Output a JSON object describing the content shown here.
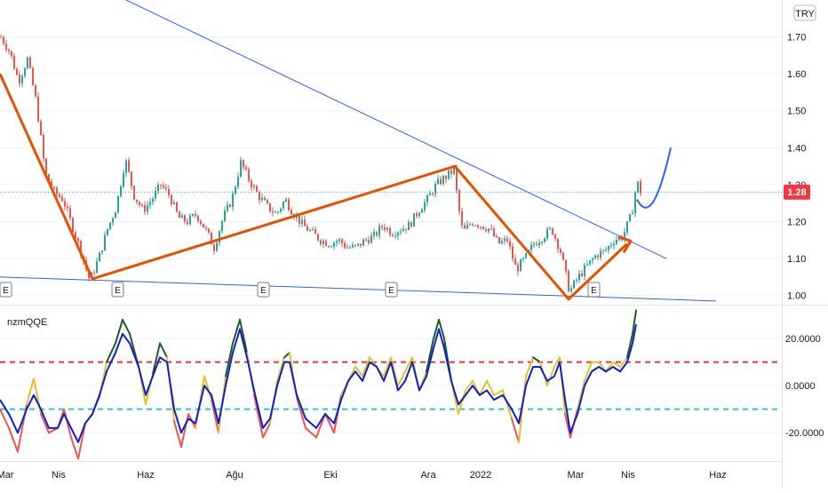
{
  "currency": "TRY",
  "indicator_name": "nzmQQE",
  "last_price_label": "1.28",
  "colors": {
    "up": "#26a69a",
    "down": "#ef5350",
    "trendline_blue": "#2962ff",
    "zigzag": "#e65100",
    "price_badge": "#f23645",
    "qqe_fast_up": "#1b5e20",
    "qqe_fast_mid": "#e6c02a",
    "qqe_fast_down": "#ef5350",
    "qqe_slow": "#0d1fcf",
    "upper_threshold": "#e53935",
    "lower_threshold": "#26c6da"
  },
  "earnings_marker_label": "E",
  "chart_data": [
    {
      "type": "line",
      "subtype": "candlestick",
      "price_ticks": [
        "1.70",
        "1.60",
        "1.50",
        "1.40",
        "1.30",
        "1.20",
        "1.10",
        "1.00"
      ],
      "ylim": [
        0.975,
        1.8
      ],
      "x_labels": [
        "Mar",
        "Nis",
        "Haz",
        "Ağu",
        "Eki",
        "Ara",
        "2022",
        "Mar",
        "Nis",
        "Haz"
      ],
      "last_price": 1.28,
      "close_path": [
        [
          0,
          1.7
        ],
        [
          10,
          1.66
        ],
        [
          20,
          1.58
        ],
        [
          30,
          1.64
        ],
        [
          40,
          1.52
        ],
        [
          50,
          1.33
        ],
        [
          60,
          1.28
        ],
        [
          70,
          1.26
        ],
        [
          80,
          1.19
        ],
        [
          90,
          1.12
        ],
        [
          100,
          1.04
        ],
        [
          110,
          1.1
        ],
        [
          120,
          1.18
        ],
        [
          130,
          1.24
        ],
        [
          140,
          1.37
        ],
        [
          150,
          1.27
        ],
        [
          160,
          1.23
        ],
        [
          170,
          1.26
        ],
        [
          180,
          1.3
        ],
        [
          190,
          1.27
        ],
        [
          200,
          1.21
        ],
        [
          210,
          1.2
        ],
        [
          220,
          1.22
        ],
        [
          230,
          1.18
        ],
        [
          240,
          1.13
        ],
        [
          250,
          1.21
        ],
        [
          260,
          1.26
        ],
        [
          270,
          1.36
        ],
        [
          280,
          1.31
        ],
        [
          290,
          1.27
        ],
        [
          300,
          1.24
        ],
        [
          310,
          1.22
        ],
        [
          320,
          1.26
        ],
        [
          330,
          1.22
        ],
        [
          340,
          1.19
        ],
        [
          350,
          1.17
        ],
        [
          360,
          1.15
        ],
        [
          370,
          1.14
        ],
        [
          380,
          1.15
        ],
        [
          390,
          1.13
        ],
        [
          400,
          1.13
        ],
        [
          410,
          1.15
        ],
        [
          420,
          1.16
        ],
        [
          430,
          1.19
        ],
        [
          440,
          1.17
        ],
        [
          450,
          1.18
        ],
        [
          460,
          1.19
        ],
        [
          470,
          1.23
        ],
        [
          480,
          1.26
        ],
        [
          490,
          1.3
        ],
        [
          500,
          1.32
        ],
        [
          510,
          1.34
        ],
        [
          515,
          1.24
        ],
        [
          520,
          1.17
        ],
        [
          530,
          1.2
        ],
        [
          540,
          1.19
        ],
        [
          550,
          1.18
        ],
        [
          560,
          1.14
        ],
        [
          570,
          1.15
        ],
        [
          580,
          1.07
        ],
        [
          590,
          1.1
        ],
        [
          600,
          1.14
        ],
        [
          610,
          1.16
        ],
        [
          620,
          1.18
        ],
        [
          630,
          1.12
        ],
        [
          640,
          1.01
        ],
        [
          650,
          1.05
        ],
        [
          660,
          1.08
        ],
        [
          670,
          1.11
        ],
        [
          680,
          1.12
        ],
        [
          690,
          1.15
        ],
        [
          700,
          1.16
        ],
        [
          710,
          1.22
        ],
        [
          716,
          1.31
        ],
        [
          720,
          1.28
        ]
      ],
      "drawings": {
        "upper_trendline": [
          [
            55,
            1.9
          ],
          [
            750,
            1.1
          ]
        ],
        "lower_trendline": [
          [
            0,
            1.05
          ],
          [
            806,
            0.985
          ]
        ],
        "zigzag": [
          [
            0,
            1.6
          ],
          [
            104,
            1.045
          ],
          [
            512,
            1.35
          ],
          [
            640,
            0.99
          ],
          [
            706,
            1.14
          ]
        ],
        "projection_curve": [
          [
            717,
            1.26
          ],
          [
            728,
            1.21
          ],
          [
            740,
            1.24
          ],
          [
            755,
            1.4
          ]
        ]
      }
    },
    {
      "type": "line",
      "title": "nzmQQE",
      "y_ticks": [
        "20.0000",
        "0.0000",
        "-20.0000"
      ],
      "ylim": [
        -32,
        34
      ],
      "thresholds": [
        10,
        -10
      ],
      "fast_line": [
        [
          0,
          -10
        ],
        [
          10,
          -18
        ],
        [
          20,
          -28
        ],
        [
          30,
          -8
        ],
        [
          38,
          3
        ],
        [
          46,
          -12
        ],
        [
          55,
          -20
        ],
        [
          65,
          -18
        ],
        [
          72,
          -10
        ],
        [
          80,
          -22
        ],
        [
          88,
          -31
        ],
        [
          96,
          -16
        ],
        [
          104,
          -12
        ],
        [
          112,
          -5
        ],
        [
          120,
          10
        ],
        [
          130,
          18
        ],
        [
          138,
          28
        ],
        [
          146,
          22
        ],
        [
          156,
          8
        ],
        [
          164,
          -8
        ],
        [
          172,
          5
        ],
        [
          180,
          18
        ],
        [
          188,
          12
        ],
        [
          196,
          -15
        ],
        [
          204,
          -26
        ],
        [
          212,
          -12
        ],
        [
          220,
          -18
        ],
        [
          230,
          4
        ],
        [
          238,
          -6
        ],
        [
          246,
          -20
        ],
        [
          254,
          4
        ],
        [
          262,
          18
        ],
        [
          270,
          28
        ],
        [
          278,
          14
        ],
        [
          286,
          -4
        ],
        [
          296,
          -22
        ],
        [
          304,
          -16
        ],
        [
          312,
          2
        ],
        [
          320,
          12
        ],
        [
          326,
          14
        ],
        [
          334,
          -5
        ],
        [
          344,
          -18
        ],
        [
          356,
          -22
        ],
        [
          366,
          -12
        ],
        [
          376,
          -20
        ],
        [
          384,
          -4
        ],
        [
          392,
          2
        ],
        [
          400,
          8
        ],
        [
          408,
          4
        ],
        [
          416,
          12
        ],
        [
          424,
          8
        ],
        [
          432,
          4
        ],
        [
          440,
          12
        ],
        [
          448,
          0
        ],
        [
          456,
          6
        ],
        [
          464,
          12
        ],
        [
          472,
          -2
        ],
        [
          480,
          6
        ],
        [
          488,
          20
        ],
        [
          494,
          28
        ],
        [
          500,
          20
        ],
        [
          508,
          2
        ],
        [
          516,
          -12
        ],
        [
          524,
          -2
        ],
        [
          532,
          2
        ],
        [
          540,
          -4
        ],
        [
          548,
          2
        ],
        [
          556,
          -4
        ],
        [
          566,
          -2
        ],
        [
          576,
          -14
        ],
        [
          584,
          -24
        ],
        [
          592,
          4
        ],
        [
          600,
          12
        ],
        [
          608,
          10
        ],
        [
          616,
          0
        ],
        [
          624,
          8
        ],
        [
          630,
          12
        ],
        [
          636,
          -12
        ],
        [
          642,
          -22
        ],
        [
          650,
          -10
        ],
        [
          658,
          2
        ],
        [
          666,
          10
        ],
        [
          674,
          10
        ],
        [
          682,
          6
        ],
        [
          690,
          10
        ],
        [
          698,
          8
        ],
        [
          706,
          12
        ],
        [
          712,
          22
        ],
        [
          716,
          32
        ]
      ],
      "slow_line": [
        [
          0,
          -6
        ],
        [
          10,
          -12
        ],
        [
          20,
          -20
        ],
        [
          30,
          -10
        ],
        [
          38,
          -4
        ],
        [
          46,
          -10
        ],
        [
          55,
          -18
        ],
        [
          65,
          -18
        ],
        [
          72,
          -12
        ],
        [
          80,
          -18
        ],
        [
          88,
          -24
        ],
        [
          96,
          -16
        ],
        [
          104,
          -12
        ],
        [
          112,
          -4
        ],
        [
          120,
          6
        ],
        [
          130,
          14
        ],
        [
          138,
          22
        ],
        [
          146,
          18
        ],
        [
          156,
          8
        ],
        [
          164,
          -4
        ],
        [
          172,
          4
        ],
        [
          180,
          12
        ],
        [
          188,
          10
        ],
        [
          196,
          -10
        ],
        [
          204,
          -20
        ],
        [
          212,
          -14
        ],
        [
          220,
          -16
        ],
        [
          230,
          0
        ],
        [
          238,
          -4
        ],
        [
          246,
          -16
        ],
        [
          254,
          0
        ],
        [
          262,
          14
        ],
        [
          270,
          24
        ],
        [
          278,
          12
        ],
        [
          286,
          -2
        ],
        [
          296,
          -18
        ],
        [
          304,
          -14
        ],
        [
          312,
          0
        ],
        [
          320,
          10
        ],
        [
          326,
          10
        ],
        [
          334,
          -4
        ],
        [
          344,
          -14
        ],
        [
          356,
          -18
        ],
        [
          366,
          -12
        ],
        [
          376,
          -16
        ],
        [
          384,
          -6
        ],
        [
          392,
          2
        ],
        [
          400,
          6
        ],
        [
          408,
          2
        ],
        [
          416,
          10
        ],
        [
          424,
          8
        ],
        [
          432,
          2
        ],
        [
          440,
          10
        ],
        [
          448,
          -2
        ],
        [
          456,
          2
        ],
        [
          464,
          10
        ],
        [
          472,
          -2
        ],
        [
          480,
          4
        ],
        [
          488,
          16
        ],
        [
          494,
          24
        ],
        [
          500,
          16
        ],
        [
          508,
          2
        ],
        [
          516,
          -8
        ],
        [
          524,
          -4
        ],
        [
          532,
          0
        ],
        [
          540,
          -4
        ],
        [
          548,
          -2
        ],
        [
          556,
          -6
        ],
        [
          566,
          -4
        ],
        [
          576,
          -10
        ],
        [
          584,
          -16
        ],
        [
          592,
          0
        ],
        [
          600,
          8
        ],
        [
          608,
          8
        ],
        [
          616,
          2
        ],
        [
          624,
          4
        ],
        [
          630,
          10
        ],
        [
          636,
          -6
        ],
        [
          642,
          -20
        ],
        [
          650,
          -12
        ],
        [
          658,
          0
        ],
        [
          666,
          6
        ],
        [
          674,
          8
        ],
        [
          682,
          6
        ],
        [
          690,
          8
        ],
        [
          698,
          6
        ],
        [
          706,
          10
        ],
        [
          712,
          18
        ],
        [
          716,
          26
        ]
      ]
    }
  ]
}
